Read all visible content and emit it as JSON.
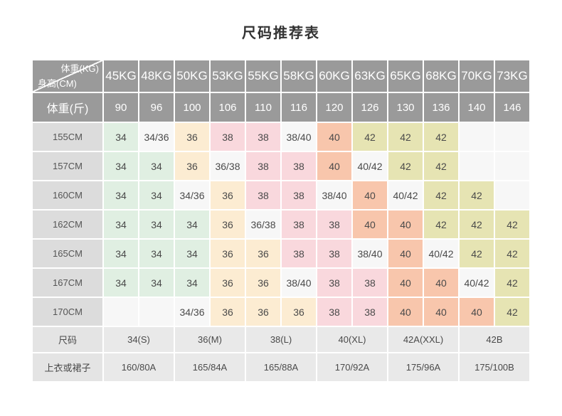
{
  "title": "尺码推荐表",
  "colors": {
    "header_bg": "#9a9a9a",
    "header_text": "#ffffff",
    "row_label_bg": "#dcdcdc",
    "neutral_cell_bg": "#f7f7f7",
    "size_34_green": "#e0efe2",
    "size_36_peach": "#fcecd2",
    "size_38_pink": "#f9d8dd",
    "size_40_salmon": "#f8c6ac",
    "size_42_khaki": "#e6e4b3",
    "footer_label_bg": "#e4e4e4",
    "footer_value_bg": "#e9e9e9"
  },
  "table": {
    "corner": {
      "top_label": "体重(KG)",
      "bottom_label": "身高(CM)"
    },
    "kg_headers": [
      "45KG",
      "48KG",
      "50KG",
      "53KG",
      "55KG",
      "58KG",
      "60KG",
      "63KG",
      "65KG",
      "68KG",
      "70KG",
      "73KG"
    ],
    "jin_row": {
      "label": "体重(斤)",
      "values": [
        "90",
        "96",
        "100",
        "106",
        "110",
        "116",
        "120",
        "126",
        "130",
        "136",
        "140",
        "146"
      ]
    },
    "body_rows": [
      {
        "label": "155CM",
        "cells": [
          "34",
          "34/36",
          "36",
          "38",
          "38",
          "38/40",
          "40",
          "42",
          "42",
          "42",
          "",
          ""
        ]
      },
      {
        "label": "157CM",
        "cells": [
          "34",
          "34",
          "36",
          "36/38",
          "38",
          "38",
          "40",
          "40/42",
          "42",
          "42",
          "",
          ""
        ]
      },
      {
        "label": "160CM",
        "cells": [
          "34",
          "34",
          "34/36",
          "36",
          "38",
          "38",
          "38/40",
          "40",
          "40/42",
          "42",
          "42",
          ""
        ]
      },
      {
        "label": "162CM",
        "cells": [
          "34",
          "34",
          "34",
          "36",
          "36/38",
          "38",
          "38",
          "40",
          "40",
          "42",
          "42",
          "42"
        ]
      },
      {
        "label": "165CM",
        "cells": [
          "34",
          "34",
          "34",
          "36",
          "36",
          "38",
          "38",
          "38/40",
          "40",
          "40/42",
          "42",
          "42"
        ]
      },
      {
        "label": "167CM",
        "cells": [
          "34",
          "34",
          "34",
          "36",
          "36",
          "38/40",
          "38",
          "38",
          "40",
          "40",
          "40/42",
          "42"
        ]
      },
      {
        "label": "170CM",
        "cells": [
          "",
          "",
          "34/36",
          "36",
          "36",
          "36",
          "38",
          "38",
          "40",
          "40",
          "40",
          "42"
        ]
      }
    ],
    "size_row": {
      "label": "尺码",
      "values": [
        "34(S)",
        "36(M)",
        "38(L)",
        "40(XL)",
        "42A(XXL)",
        "42B"
      ]
    },
    "garment_row": {
      "label": "上衣或裙子",
      "values": [
        "160/80A",
        "165/84A",
        "165/88A",
        "170/92A",
        "175/96A",
        "175/100B"
      ]
    }
  }
}
